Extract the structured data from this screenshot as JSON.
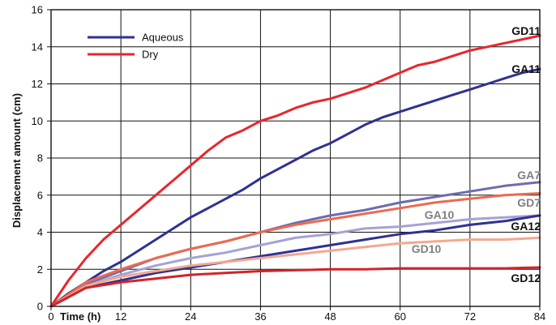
{
  "chart_data": {
    "type": "line",
    "xlabel": "Time (h)",
    "ylabel": "Displacement amount (cm)",
    "xlim": [
      0,
      84
    ],
    "ylim": [
      0,
      16
    ],
    "xticks": [
      0,
      12,
      24,
      36,
      48,
      60,
      72,
      84
    ],
    "yticks": [
      0,
      2,
      4,
      6,
      8,
      10,
      12,
      14,
      16
    ],
    "grid": true,
    "legend": {
      "placement": "top-left",
      "entries": [
        {
          "name": "Aqueous",
          "color": "#2e3192"
        },
        {
          "name": "Dry",
          "color": "#e8262b"
        }
      ]
    },
    "series": [
      {
        "name": "GD11",
        "color": "#e8262b",
        "label_color": "#111111",
        "x": [
          0,
          3,
          6,
          9,
          12,
          15,
          18,
          21,
          24,
          27,
          30,
          33,
          36,
          39,
          42,
          45,
          48,
          51,
          54,
          57,
          60,
          63,
          66,
          69,
          72,
          75,
          78,
          81,
          84
        ],
        "y": [
          0,
          1.4,
          2.6,
          3.6,
          4.4,
          5.2,
          6.0,
          6.8,
          7.6,
          8.4,
          9.1,
          9.5,
          10.0,
          10.3,
          10.7,
          11.0,
          11.2,
          11.5,
          11.8,
          12.2,
          12.6,
          13.0,
          13.2,
          13.5,
          13.8,
          14.0,
          14.2,
          14.4,
          14.6
        ]
      },
      {
        "name": "GA11",
        "color": "#2e3192",
        "label_color": "#111111",
        "x": [
          0,
          3,
          6,
          9,
          12,
          15,
          18,
          21,
          24,
          27,
          30,
          33,
          36,
          39,
          42,
          45,
          48,
          51,
          54,
          57,
          60,
          63,
          66,
          69,
          72,
          75,
          78,
          81,
          84
        ],
        "y": [
          0,
          0.7,
          1.3,
          1.9,
          2.4,
          3.0,
          3.6,
          4.2,
          4.8,
          5.3,
          5.8,
          6.3,
          6.9,
          7.4,
          7.9,
          8.4,
          8.8,
          9.3,
          9.8,
          10.2,
          10.5,
          10.8,
          11.1,
          11.4,
          11.7,
          12.0,
          12.3,
          12.6,
          12.8
        ]
      },
      {
        "name": "GA7",
        "color": "#6b6cb0",
        "label_color": "#808080",
        "x": [
          0,
          6,
          12,
          18,
          24,
          30,
          36,
          42,
          48,
          54,
          60,
          66,
          72,
          78,
          84
        ],
        "y": [
          0,
          1.2,
          1.9,
          2.6,
          3.1,
          3.5,
          4.0,
          4.5,
          4.9,
          5.2,
          5.6,
          5.9,
          6.2,
          6.5,
          6.7
        ]
      },
      {
        "name": "GD7",
        "color": "#ec6a50",
        "label_color": "#808080",
        "x": [
          0,
          6,
          12,
          18,
          24,
          30,
          36,
          42,
          48,
          54,
          60,
          66,
          72,
          78,
          84
        ],
        "y": [
          0,
          1.3,
          2.0,
          2.6,
          3.1,
          3.5,
          4.0,
          4.4,
          4.7,
          5.0,
          5.3,
          5.6,
          5.8,
          6.0,
          6.1
        ]
      },
      {
        "name": "GA10",
        "color": "#a3a3d6",
        "label_color": "#808080",
        "x": [
          0,
          6,
          12,
          18,
          24,
          30,
          36,
          42,
          48,
          54,
          60,
          66,
          72,
          78,
          84
        ],
        "y": [
          0,
          1.1,
          1.7,
          2.2,
          2.6,
          2.9,
          3.3,
          3.7,
          3.9,
          4.2,
          4.3,
          4.5,
          4.7,
          4.8,
          4.9
        ]
      },
      {
        "name": "GA12",
        "color": "#2e3192",
        "label_color": "#111111",
        "x": [
          0,
          6,
          12,
          18,
          24,
          30,
          36,
          42,
          48,
          54,
          60,
          66,
          72,
          78,
          84
        ],
        "y": [
          0,
          1.0,
          1.4,
          1.8,
          2.1,
          2.4,
          2.7,
          3.0,
          3.3,
          3.6,
          3.9,
          4.1,
          4.4,
          4.6,
          4.9
        ]
      },
      {
        "name": "GD10",
        "color": "#f3a890",
        "label_color": "#808080",
        "x": [
          0,
          6,
          12,
          18,
          24,
          30,
          36,
          42,
          48,
          54,
          60,
          66,
          72,
          78,
          84
        ],
        "y": [
          0,
          1.1,
          1.6,
          1.9,
          2.2,
          2.4,
          2.6,
          2.8,
          3.0,
          3.2,
          3.4,
          3.5,
          3.6,
          3.6,
          3.7
        ]
      },
      {
        "name": "GD12",
        "color": "#d2232a",
        "label_color": "#111111",
        "x": [
          0,
          6,
          12,
          18,
          24,
          30,
          36,
          42,
          48,
          54,
          60,
          66,
          72,
          78,
          84
        ],
        "y": [
          0,
          1.0,
          1.3,
          1.5,
          1.7,
          1.8,
          1.9,
          1.95,
          2.0,
          2.0,
          2.05,
          2.05,
          2.05,
          2.05,
          2.1
        ]
      }
    ]
  }
}
